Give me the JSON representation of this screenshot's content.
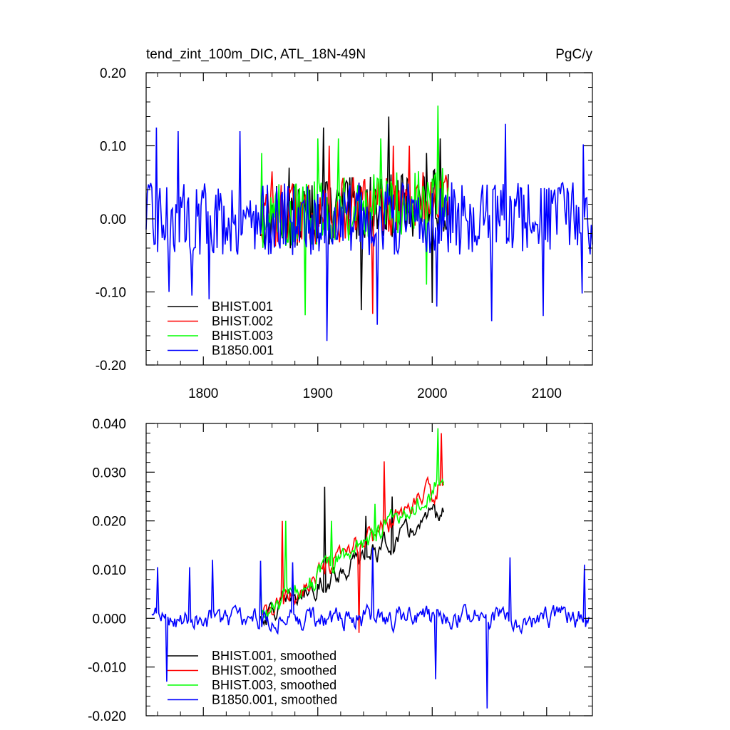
{
  "chart_data": [
    {
      "type": "line",
      "title": "tend_zint_100m_DIC, ATL_18N-49N",
      "units": "PgC/y",
      "xlim": [
        1750,
        2140
      ],
      "ylim": [
        -0.2,
        0.2
      ],
      "yticks": [
        "0.20",
        "0.10",
        "0.00",
        "-0.10",
        "-0.20"
      ],
      "xticks": [
        "1800",
        "1900",
        "2000",
        "2100"
      ],
      "legend_placement": "bottom-left",
      "series": [
        {
          "name": "BHIST.001",
          "color": "#000000",
          "x_start": 1850,
          "x_end": 2014,
          "amplitude": 0.045,
          "trend_start": 0.0,
          "trend_end": 0.025,
          "peaks": [
            [
              1875,
              0.07
            ],
            [
              1905,
              0.125
            ],
            [
              1938,
              -0.125
            ],
            [
              1962,
              0.14
            ],
            [
              1995,
              0.09
            ],
            [
              2000,
              -0.115
            ],
            [
              2007,
              0.11
            ]
          ]
        },
        {
          "name": "BHIST.002",
          "color": "#ff0000",
          "x_start": 1850,
          "x_end": 2014,
          "amplitude": 0.045,
          "trend_start": 0.0,
          "trend_end": 0.025,
          "peaks": [
            [
              1860,
              0.065
            ],
            [
              1910,
              0.1
            ],
            [
              1948,
              -0.13
            ],
            [
              1966,
              0.1
            ],
            [
              1980,
              0.1
            ],
            [
              2012,
              0.06
            ]
          ]
        },
        {
          "name": "BHIST.003",
          "color": "#00ff00",
          "x_start": 1850,
          "x_end": 2014,
          "amplitude": 0.045,
          "trend_start": 0.0,
          "trend_end": 0.028,
          "peaks": [
            [
              1851,
              0.09
            ],
            [
              1889,
              -0.132
            ],
            [
              1900,
              0.11
            ],
            [
              1918,
              0.11
            ],
            [
              1955,
              0.11
            ],
            [
              1995,
              -0.09
            ],
            [
              2005,
              0.155
            ]
          ]
        },
        {
          "name": "B1850.001",
          "color": "#0000ff",
          "x_start": 1750,
          "x_end": 2140,
          "amplitude": 0.05,
          "trend_start": 0.0,
          "trend_end": 0.0,
          "peaks": [
            [
              1759,
              0.125
            ],
            [
              1770,
              -0.1
            ],
            [
              1778,
              0.12
            ],
            [
              1790,
              -0.105
            ],
            [
              1805,
              -0.11
            ],
            [
              1832,
              0.12
            ],
            [
              1908,
              -0.167
            ],
            [
              1952,
              -0.145
            ],
            [
              2004,
              -0.12
            ],
            [
              2052,
              -0.14
            ],
            [
              2064,
              0.13
            ],
            [
              2097,
              -0.133
            ],
            [
              2131,
              -0.102
            ],
            [
              2132,
              0.102
            ]
          ]
        }
      ]
    },
    {
      "type": "line",
      "xlim": [
        1750,
        2140
      ],
      "ylim": [
        -0.02,
        0.04
      ],
      "yticks": [
        "0.040",
        "0.030",
        "0.020",
        "0.010",
        "0.000",
        "-0.010",
        "-0.020"
      ],
      "legend_placement": "bottom-left",
      "series": [
        {
          "name": "BHIST.001, smoothed",
          "color": "#000000",
          "x_start": 1850,
          "x_end": 2010,
          "amplitude": 0.004,
          "trend_start": 0.0,
          "trend_end": 0.022,
          "peaks": [
            [
              1906,
              0.027
            ],
            [
              1942,
              0.021
            ],
            [
              1965,
              0.025
            ],
            [
              2008,
              0.021
            ]
          ]
        },
        {
          "name": "BHIST.002, smoothed",
          "color": "#ff0000",
          "x_start": 1852,
          "x_end": 2010,
          "amplitude": 0.004,
          "trend_start": 0.0,
          "trend_end": 0.028,
          "peaks": [
            [
              1869,
              0.02
            ],
            [
              1936,
              -0.003
            ],
            [
              1958,
              0.0322
            ],
            [
              2008,
              0.038
            ]
          ]
        },
        {
          "name": "BHIST.003, smoothed",
          "color": "#00ff00",
          "x_start": 1850,
          "x_end": 2010,
          "amplitude": 0.004,
          "trend_start": 0.0,
          "trend_end": 0.028,
          "peaks": [
            [
              1850,
              0.01
            ],
            [
              1872,
              0.02
            ],
            [
              1912,
              0.02
            ],
            [
              1950,
              0.0235
            ],
            [
              2005,
              0.039
            ]
          ]
        },
        {
          "name": "B1850.001, smoothed",
          "color": "#0000ff",
          "x_start": 1755,
          "x_end": 2137,
          "amplitude": 0.004,
          "trend_start": 0.0,
          "trend_end": 0.0,
          "peaks": [
            [
              1760,
              0.0105
            ],
            [
              1768,
              -0.013
            ],
            [
              1788,
              0.0105
            ],
            [
              1808,
              0.012
            ],
            [
              1850,
              0.0118
            ],
            [
              1878,
              0.0115
            ],
            [
              1948,
              0.0145
            ],
            [
              2003,
              -0.0125
            ],
            [
              2048,
              -0.0185
            ],
            [
              2068,
              0.0125
            ],
            [
              2133,
              0.011
            ]
          ]
        }
      ]
    }
  ]
}
